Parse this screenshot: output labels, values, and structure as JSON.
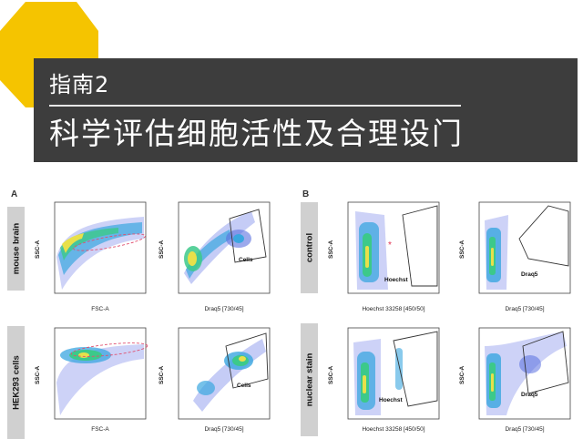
{
  "header": {
    "subtitle": "指南2",
    "title": "科学评估细胞活性及合理设门",
    "accent_color": "#f5c400",
    "banner_color": "#3d3d3d"
  },
  "figure": {
    "panel_a_label": "A",
    "panel_b_label": "B",
    "row_labels": {
      "a_top": "mouse brain",
      "a_bottom": "HEK293 cells",
      "b_top": "control",
      "b_bottom": "nuclear stain"
    },
    "axes": {
      "ssc": "SSC-A",
      "fsc": "FSC-A",
      "draq5": "Draq5 [730/45]",
      "hoechst": "Hoechst 33258 [450/50]"
    },
    "gates": {
      "cells": "Cells",
      "hoechst": "Hoechst",
      "draq5": "Draq5"
    }
  }
}
